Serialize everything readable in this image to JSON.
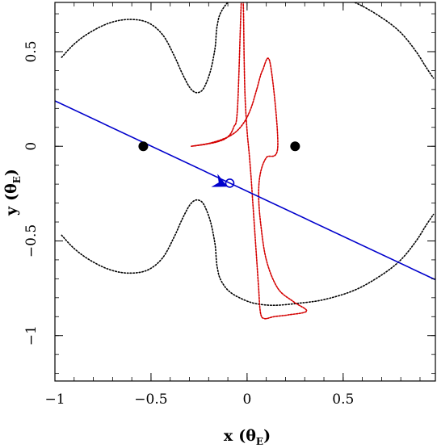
{
  "chart_data": {
    "type": "scatter",
    "title": "",
    "xlabel": "x (θE)",
    "ylabel": "y (θE)",
    "xlabel_parts": {
      "main": "x",
      "open": "(θ",
      "sub": "E",
      "close": ")"
    },
    "ylabel_parts": {
      "main": "y",
      "open": "(θ",
      "sub": "E",
      "close": ")"
    },
    "xlim": [
      -1.0,
      0.98
    ],
    "ylim": [
      -1.24,
      0.76
    ],
    "x_ticks": [
      {
        "value": -1,
        "label": "−1"
      },
      {
        "value": -0.5,
        "label": "−0.5"
      },
      {
        "value": 0,
        "label": "0"
      },
      {
        "value": 0.5,
        "label": "0.5"
      }
    ],
    "y_ticks": [
      {
        "value": 0.5,
        "label": "0.5"
      },
      {
        "value": 0,
        "label": "0"
      },
      {
        "value": -0.5,
        "label": "−0.5"
      },
      {
        "value": -1,
        "label": "−1"
      }
    ],
    "grid": false,
    "colors": {
      "critical_curve": "#000000",
      "caustic": "#d40000",
      "source_trajectory": "#0000cc",
      "lens_masses": "#000000"
    },
    "lens_masses": [
      {
        "x": -0.54,
        "y": 0.0
      },
      {
        "x": 0.25,
        "y": 0.0
      }
    ],
    "source_trajectory": {
      "x": [
        -1.0,
        0.98
      ],
      "y": [
        0.24,
        -0.705
      ],
      "arrow": {
        "x": -0.14,
        "y": -0.195,
        "direction": [
          1.0,
          -0.477
        ]
      },
      "source_position": {
        "x": -0.09,
        "y": -0.195
      }
    },
    "critical_curve": {
      "upper": {
        "x": [
          -0.965,
          -0.9,
          -0.82,
          -0.72,
          -0.62,
          -0.52,
          -0.44,
          -0.38,
          -0.34,
          -0.31,
          -0.29,
          -0.27,
          -0.25,
          -0.23,
          -0.21,
          -0.19,
          -0.175,
          -0.165,
          -0.16,
          -0.155,
          -0.14,
          -0.1,
          -0.04,
          0.04,
          0.14,
          0.26,
          0.4,
          0.56,
          0.7,
          0.8,
          0.88,
          0.93,
          0.97
        ],
        "y": [
          0.47,
          0.54,
          0.6,
          0.65,
          0.67,
          0.655,
          0.59,
          0.48,
          0.39,
          0.33,
          0.3,
          0.285,
          0.285,
          0.3,
          0.34,
          0.4,
          0.47,
          0.53,
          0.6,
          0.64,
          0.7,
          0.76,
          0.8,
          0.83,
          0.84,
          0.83,
          0.81,
          0.76,
          0.68,
          0.6,
          0.5,
          0.42,
          0.36
        ]
      },
      "lower": {
        "x": [
          -0.965,
          -0.9,
          -0.82,
          -0.72,
          -0.62,
          -0.52,
          -0.44,
          -0.38,
          -0.34,
          -0.31,
          -0.29,
          -0.27,
          -0.25,
          -0.23,
          -0.21,
          -0.19,
          -0.175,
          -0.165,
          -0.16,
          -0.155,
          -0.14,
          -0.1,
          -0.04,
          0.04,
          0.14,
          0.26,
          0.4,
          0.56,
          0.7,
          0.8,
          0.88,
          0.93,
          0.97
        ],
        "y": [
          -0.47,
          -0.54,
          -0.6,
          -0.65,
          -0.67,
          -0.655,
          -0.59,
          -0.48,
          -0.39,
          -0.33,
          -0.3,
          -0.285,
          -0.285,
          -0.3,
          -0.34,
          -0.4,
          -0.47,
          -0.53,
          -0.6,
          -0.64,
          -0.7,
          -0.76,
          -0.8,
          -0.83,
          -0.84,
          -0.83,
          -0.81,
          -0.76,
          -0.68,
          -0.6,
          -0.5,
          -0.42,
          -0.36
        ]
      }
    },
    "caustic": {
      "x": [
        -0.29,
        -0.18,
        -0.08,
        -0.02,
        0.02,
        0.05,
        0.08,
        0.12,
        0.16,
        0.1,
        0.07,
        0.06,
        0.07,
        0.1,
        0.16,
        0.24,
        0.31,
        0.22,
        0.14,
        0.09,
        0.07,
        0.06,
        0.05,
        0.04,
        0.03,
        0.02,
        0.01,
        0.0,
        -0.01,
        -0.015,
        -0.02,
        -0.03,
        -0.05,
        -0.07,
        -0.1,
        -0.15,
        -0.22,
        -0.29
      ],
      "y": [
        0.0,
        0.02,
        0.06,
        0.12,
        0.2,
        0.3,
        0.4,
        0.44,
        0.0,
        -0.06,
        -0.14,
        -0.25,
        -0.4,
        -0.6,
        -0.75,
        -0.82,
        -0.87,
        -0.89,
        -0.9,
        -0.91,
        -0.88,
        -0.75,
        -0.6,
        -0.45,
        -0.3,
        -0.15,
        -0.03,
        0.08,
        0.25,
        0.45,
        0.76,
        0.76,
        0.2,
        0.1,
        0.05,
        0.025,
        0.01,
        0.0
      ]
    }
  }
}
